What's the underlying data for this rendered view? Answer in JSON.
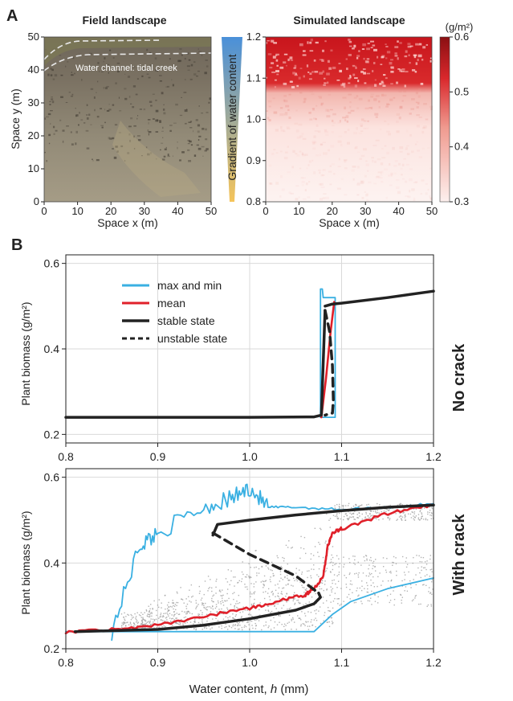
{
  "panel_a": {
    "letter": "A",
    "field": {
      "title": "Field landscape",
      "annotation": "Water channel: tidal creek",
      "xlabel": "Space x (m)",
      "ylabel": "Space y (m)",
      "xticks": [
        "0",
        "10",
        "20",
        "30",
        "40",
        "50"
      ],
      "yticks": [
        "0",
        "10",
        "20",
        "30",
        "40",
        "50"
      ],
      "xlim": [
        0,
        50
      ],
      "ylim": [
        0,
        50
      ]
    },
    "gradient": {
      "label": "Gradient of water content",
      "colors": {
        "top": "#4a90d9",
        "bottom": "#f5c45a"
      }
    },
    "simulated": {
      "title": "Simulated landscape",
      "xlabel": "Space x (m)",
      "xticks": [
        "0",
        "10",
        "20",
        "30",
        "40",
        "50"
      ],
      "yticks": [
        "0.8",
        "0.9",
        "1.0",
        "1.1",
        "1.2"
      ],
      "ylim": [
        0.8,
        1.2
      ],
      "colorbar": {
        "unit": "(g/m²)",
        "ticks": [
          "0.3",
          "0.4",
          "0.5",
          "0.6"
        ],
        "range": [
          0.3,
          0.6
        ],
        "colors": {
          "low": "#fdf0ee",
          "high": "#8a0f12"
        }
      }
    }
  },
  "panel_b": {
    "letter": "B",
    "legend": [
      "max and min",
      "mean",
      "stable state",
      "unstable state"
    ],
    "colors": {
      "maxmin": "#3ab0e2",
      "mean": "#e0202a",
      "stable": "#222222",
      "unstable": "#222222",
      "scatter": "#999999"
    },
    "ylabel": "Plant biomass (g/m²)",
    "xlabel": "Water content, h (mm)",
    "top_label": "No crack",
    "bottom_label": "With crack",
    "xticks": [
      "0.8",
      "0.9",
      "1.0",
      "1.1",
      "1.2"
    ],
    "top_yticks": [
      "0.2",
      "0.4",
      "0.6"
    ],
    "bottom_yticks": [
      "0.2",
      "0.4",
      "0.6"
    ]
  },
  "chart_data": [
    {
      "type": "line",
      "panel": "No crack",
      "xlim": [
        0.8,
        1.2
      ],
      "ylim": [
        0.18,
        0.62
      ],
      "grid": true,
      "series": [
        {
          "name": "stable state",
          "points": [
            [
              0.8,
              0.24
            ],
            [
              0.9,
              0.24
            ],
            [
              1.0,
              0.24
            ],
            [
              1.07,
              0.241
            ],
            [
              1.078,
              0.245
            ],
            [
              1.082,
              0.49
            ]
          ]
        },
        {
          "name": "stable state",
          "points": [
            [
              1.082,
              0.5
            ],
            [
              1.09,
              0.505
            ],
            [
              1.1,
              0.507
            ],
            [
              1.15,
              0.52
            ],
            [
              1.2,
              0.535
            ]
          ]
        },
        {
          "name": "unstable state",
          "points": [
            [
              1.082,
              0.49
            ],
            [
              1.087,
              0.44
            ],
            [
              1.09,
              0.36
            ],
            [
              1.091,
              0.28
            ],
            [
              1.09,
              0.25
            ],
            [
              1.082,
              0.245
            ]
          ]
        },
        {
          "name": "mean",
          "points": [
            [
              1.078,
              0.24
            ],
            [
              1.083,
              0.33
            ],
            [
              1.088,
              0.44
            ],
            [
              1.092,
              0.51
            ]
          ]
        },
        {
          "name": "max and min",
          "points": [
            [
              1.077,
              0.24
            ],
            [
              1.077,
              0.54
            ],
            [
              1.079,
              0.54
            ],
            [
              1.08,
              0.52
            ],
            [
              1.093,
              0.52
            ],
            [
              1.093,
              0.24
            ],
            [
              1.077,
              0.24
            ]
          ]
        }
      ]
    },
    {
      "type": "line",
      "panel": "With crack",
      "xlim": [
        0.8,
        1.2
      ],
      "ylim": [
        0.2,
        0.62
      ],
      "grid": true,
      "series": [
        {
          "name": "stable state",
          "points": [
            [
              0.81,
              0.24
            ],
            [
              0.9,
              0.245
            ],
            [
              0.95,
              0.255
            ],
            [
              1.0,
              0.27
            ],
            [
              1.05,
              0.29
            ],
            [
              1.07,
              0.305
            ],
            [
              1.077,
              0.32
            ],
            [
              1.075,
              0.33
            ]
          ]
        },
        {
          "name": "stable state",
          "points": [
            [
              0.96,
              0.465
            ],
            [
              0.965,
              0.49
            ],
            [
              1.0,
              0.5
            ],
            [
              1.05,
              0.512
            ],
            [
              1.1,
              0.522
            ],
            [
              1.15,
              0.53
            ],
            [
              1.2,
              0.535
            ]
          ]
        },
        {
          "name": "unstable state",
          "points": [
            [
              0.96,
              0.47
            ],
            [
              1.0,
              0.42
            ],
            [
              1.05,
              0.37
            ],
            [
              1.075,
              0.33
            ]
          ]
        },
        {
          "name": "mean",
          "points": [
            [
              0.8,
              0.24
            ],
            [
              0.85,
              0.245
            ],
            [
              0.9,
              0.255
            ],
            [
              0.95,
              0.275
            ],
            [
              1.0,
              0.295
            ],
            [
              1.03,
              0.31
            ],
            [
              1.06,
              0.325
            ],
            [
              1.07,
              0.34
            ],
            [
              1.08,
              0.37
            ],
            [
              1.085,
              0.44
            ],
            [
              1.09,
              0.47
            ],
            [
              1.1,
              0.48
            ],
            [
              1.15,
              0.515
            ],
            [
              1.2,
              0.535
            ]
          ]
        },
        {
          "name": "max and min",
          "points": [
            [
              0.85,
              0.24
            ],
            [
              0.88,
              0.44
            ],
            [
              0.9,
              0.47
            ],
            [
              0.95,
              0.53
            ],
            [
              0.98,
              0.55
            ],
            [
              1.0,
              0.575
            ],
            [
              1.02,
              0.53
            ],
            [
              1.05,
              0.53
            ],
            [
              1.1,
              0.525
            ],
            [
              1.15,
              0.53
            ],
            [
              1.2,
              0.538
            ]
          ]
        },
        {
          "name": "max and min",
          "points": [
            [
              0.8,
              0.24
            ],
            [
              0.9,
              0.24
            ],
            [
              1.0,
              0.24
            ],
            [
              1.07,
              0.24
            ],
            [
              1.09,
              0.28
            ],
            [
              1.11,
              0.31
            ],
            [
              1.15,
              0.34
            ],
            [
              1.2,
              0.365
            ]
          ]
        }
      ]
    }
  ]
}
